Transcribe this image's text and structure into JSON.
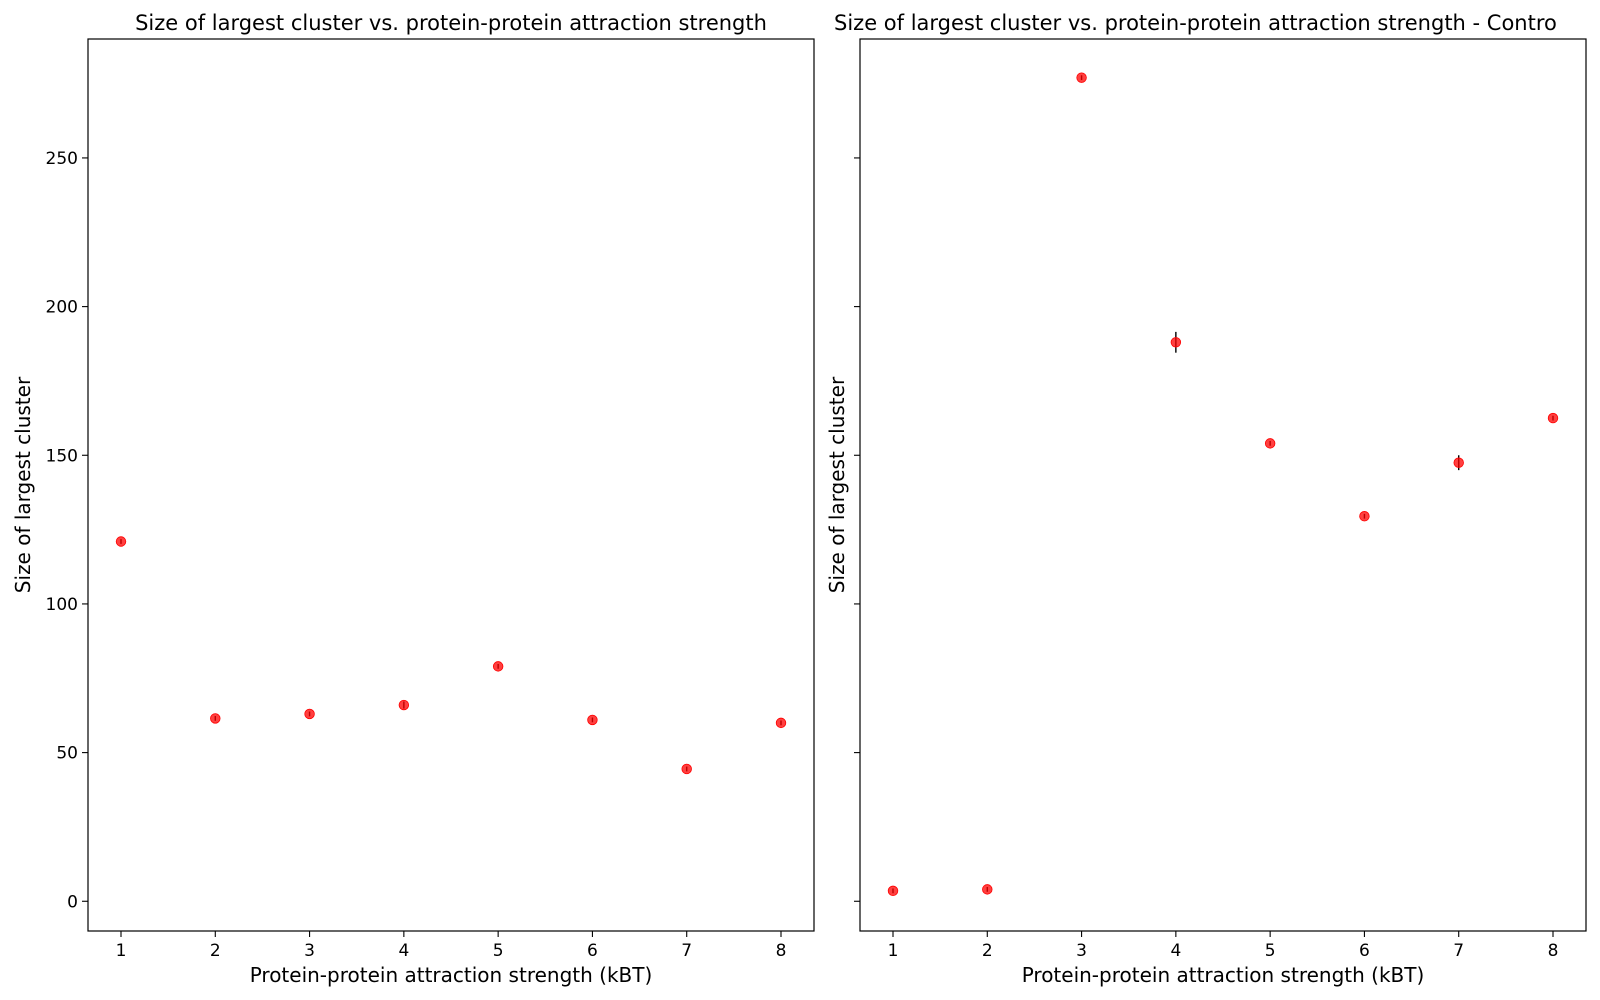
{
  "chart_data": [
    {
      "type": "scatter",
      "title": "Size of largest cluster vs. protein-protein attraction strength",
      "xlabel": "Protein-protein attraction strength (kBT)",
      "ylabel": "Size of largest cluster",
      "x_ticks": [
        1,
        2,
        3,
        4,
        5,
        6,
        7,
        8
      ],
      "y_ticks": [
        0,
        50,
        100,
        150,
        200,
        250
      ],
      "show_y_tick_labels": true,
      "xlim": [
        0.65,
        8.35
      ],
      "ylim": [
        -10,
        290
      ],
      "marker_color": "#ff0000",
      "error_color": "#000000",
      "grid": false,
      "x": [
        1,
        2,
        3,
        4,
        5,
        6,
        7,
        8
      ],
      "y": [
        121,
        61.5,
        63,
        66,
        79,
        61,
        44.5,
        60
      ],
      "yerr": [
        0.8,
        0.8,
        0.8,
        1.2,
        0.8,
        0.8,
        0.8,
        0.8
      ]
    },
    {
      "type": "scatter",
      "title": "Size of largest cluster vs. protein-protein attraction strength - Contro",
      "xlabel": "Protein-protein attraction strength (kBT)",
      "ylabel": "Size of largest cluster",
      "x_ticks": [
        1,
        2,
        3,
        4,
        5,
        6,
        7,
        8
      ],
      "y_ticks": [
        0,
        50,
        100,
        150,
        200,
        250
      ],
      "show_y_tick_labels": false,
      "xlim": [
        0.65,
        8.35
      ],
      "ylim": [
        -10,
        290
      ],
      "marker_color": "#ff0000",
      "error_color": "#000000",
      "grid": false,
      "x": [
        1,
        2,
        3,
        4,
        5,
        6,
        7,
        8
      ],
      "y": [
        3.5,
        4,
        277,
        188,
        154,
        129.5,
        147.5,
        162.5
      ],
      "yerr": [
        0.8,
        0.8,
        0.8,
        3.5,
        0.8,
        0.8,
        2.5,
        0.8
      ]
    }
  ]
}
